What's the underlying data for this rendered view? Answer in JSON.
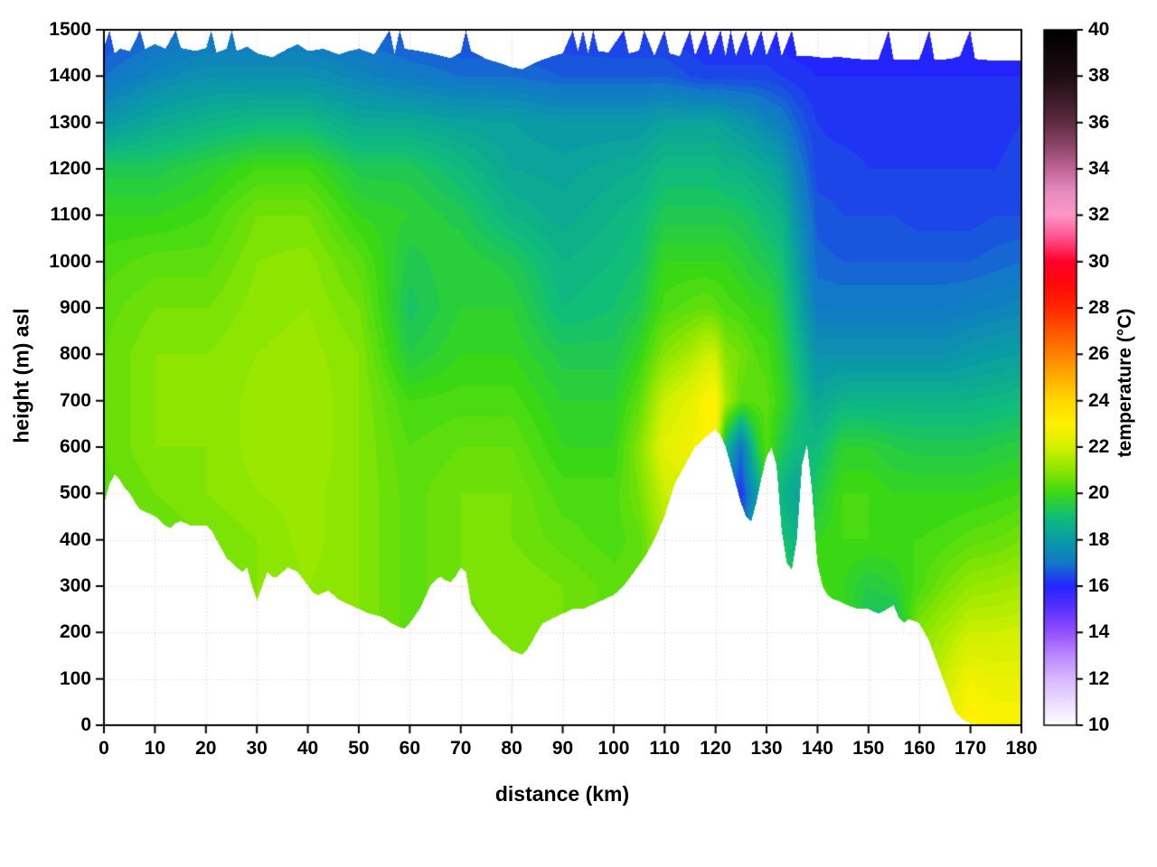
{
  "chart_data": {
    "type": "heatmap",
    "title": "",
    "xlabel": "distance (km)",
    "ylabel": "height (m) asl",
    "x_range": [
      0,
      180
    ],
    "y_range": [
      0,
      1500
    ],
    "grid": true,
    "xticks": [
      0,
      10,
      20,
      30,
      40,
      50,
      60,
      70,
      80,
      90,
      100,
      110,
      120,
      130,
      140,
      150,
      160,
      170,
      180
    ],
    "yticks": [
      0,
      100,
      200,
      300,
      400,
      500,
      600,
      700,
      800,
      900,
      1000,
      1100,
      1200,
      1300,
      1400,
      1500
    ],
    "colorbar": {
      "label": "temperature (°C)",
      "range": [
        10,
        40
      ],
      "ticks": [
        10,
        12,
        14,
        16,
        18,
        20,
        22,
        24,
        26,
        28,
        30,
        32,
        34,
        36,
        38,
        40
      ],
      "palette": [
        [
          10,
          "#ffffff"
        ],
        [
          11,
          "#ebdcff"
        ],
        [
          12,
          "#d8b8ff"
        ],
        [
          13,
          "#bc87ff"
        ],
        [
          14,
          "#9650ff"
        ],
        [
          15,
          "#5a32ff"
        ],
        [
          16,
          "#2424ff"
        ],
        [
          17,
          "#1278c8"
        ],
        [
          18,
          "#0a9ca4"
        ],
        [
          19,
          "#10be78"
        ],
        [
          20,
          "#3ad814"
        ],
        [
          21,
          "#8ce600"
        ],
        [
          22,
          "#d2f000"
        ],
        [
          23,
          "#fff200"
        ],
        [
          24,
          "#ffd700"
        ],
        [
          25,
          "#ffaf00"
        ],
        [
          26,
          "#ff8200"
        ],
        [
          27,
          "#ff5500"
        ],
        [
          28,
          "#ff2800"
        ],
        [
          29,
          "#ff0a0a"
        ],
        [
          30,
          "#ff0028"
        ],
        [
          31,
          "#ff508c"
        ],
        [
          32,
          "#ff96c8"
        ],
        [
          33,
          "#e68cbe"
        ],
        [
          34,
          "#be6496"
        ],
        [
          35,
          "#8c4669"
        ],
        [
          36,
          "#5f2d41"
        ],
        [
          37,
          "#3c1c28"
        ],
        [
          38,
          "#1e0e14"
        ],
        [
          40,
          "#000000"
        ]
      ]
    },
    "heights": [
      0,
      100,
      200,
      300,
      400,
      500,
      600,
      700,
      800,
      900,
      1000,
      1100,
      1200,
      1300,
      1400,
      1500
    ],
    "profiles": [
      {
        "x": 0,
        "t": [
          20.3,
          20.3,
          20.3,
          20.3,
          20.3,
          20.5,
          20.6,
          20.6,
          20.6,
          20.5,
          20.3,
          20.0,
          19.5,
          18.0,
          17.0,
          16.5
        ]
      },
      {
        "x": 10,
        "t": [
          20.5,
          20.5,
          20.5,
          20.5,
          20.6,
          20.8,
          21.0,
          21.0,
          21.0,
          20.8,
          20.5,
          20.0,
          19.5,
          18.5,
          17.5,
          16.8
        ]
      },
      {
        "x": 20,
        "t": [
          20.5,
          20.5,
          20.5,
          20.6,
          20.8,
          21.0,
          21.0,
          21.0,
          21.0,
          20.8,
          20.5,
          20.2,
          19.8,
          18.8,
          17.8,
          17.0
        ]
      },
      {
        "x": 30,
        "t": [
          21.0,
          21.0,
          21.0,
          21.0,
          21.0,
          21.2,
          21.3,
          21.3,
          21.2,
          21.1,
          21.0,
          20.8,
          20.2,
          19.0,
          17.8,
          17.0
        ]
      },
      {
        "x": 40,
        "t": [
          21.0,
          21.0,
          21.0,
          21.2,
          21.3,
          21.3,
          21.4,
          21.4,
          21.3,
          21.2,
          21.1,
          20.8,
          20.2,
          19.0,
          17.8,
          17.0
        ]
      },
      {
        "x": 50,
        "t": [
          20.8,
          20.8,
          21.0,
          21.0,
          21.0,
          21.0,
          21.0,
          21.0,
          21.0,
          20.8,
          20.5,
          20.0,
          19.5,
          18.5,
          17.5,
          16.8
        ]
      },
      {
        "x": 60,
        "t": [
          20.5,
          20.5,
          20.5,
          20.5,
          20.5,
          20.5,
          20.4,
          20.2,
          19.6,
          19.3,
          19.5,
          19.8,
          19.5,
          18.5,
          17.2,
          16.6
        ]
      },
      {
        "x": 70,
        "t": [
          20.6,
          20.6,
          20.6,
          20.8,
          20.8,
          20.8,
          20.6,
          20.3,
          20.0,
          19.8,
          19.8,
          19.5,
          19.0,
          18.3,
          17.0,
          16.5
        ]
      },
      {
        "x": 80,
        "t": [
          21.0,
          21.0,
          21.0,
          21.0,
          20.8,
          20.8,
          20.6,
          20.3,
          20.0,
          19.8,
          19.5,
          18.8,
          18.4,
          18.2,
          17.0,
          16.5
        ]
      },
      {
        "x": 90,
        "t": [
          20.8,
          20.8,
          20.8,
          20.8,
          20.5,
          20.3,
          20.0,
          19.8,
          19.5,
          19.0,
          18.8,
          18.5,
          18.3,
          18.0,
          16.8,
          16.4
        ]
      },
      {
        "x": 100,
        "t": [
          20.5,
          20.5,
          20.5,
          20.5,
          20.3,
          20.3,
          20.0,
          19.8,
          19.5,
          19.2,
          19.0,
          18.8,
          18.5,
          18.0,
          16.8,
          16.3
        ]
      },
      {
        "x": 105,
        "t": [
          20.5,
          20.5,
          20.5,
          20.5,
          20.5,
          20.8,
          21.0,
          20.5,
          20.0,
          19.5,
          19.2,
          19.0,
          18.6,
          18.0,
          16.8,
          16.3
        ]
      },
      {
        "x": 110,
        "t": [
          21.0,
          21.0,
          21.0,
          21.0,
          21.5,
          22.0,
          22.5,
          22.0,
          21.0,
          20.3,
          20.0,
          19.5,
          19.0,
          18.3,
          16.8,
          16.3
        ]
      },
      {
        "x": 115,
        "t": [
          21.5,
          21.5,
          21.5,
          21.5,
          22.0,
          22.3,
          22.8,
          22.5,
          21.5,
          20.5,
          20.0,
          19.5,
          19.0,
          18.3,
          16.6,
          16.2
        ]
      },
      {
        "x": 118,
        "t": [
          22.0,
          22.0,
          22.0,
          22.0,
          22.0,
          22.3,
          23.0,
          23.0,
          22.0,
          20.6,
          20.0,
          19.5,
          19.0,
          18.3,
          16.5,
          16.1
        ]
      },
      {
        "x": 120,
        "t": [
          22.0,
          22.0,
          22.0,
          22.0,
          22.0,
          22.3,
          23.0,
          23.2,
          22.0,
          20.5,
          20.0,
          19.5,
          19.0,
          18.4,
          16.5,
          16.1
        ]
      },
      {
        "x": 122,
        "t": [
          20.0,
          20.0,
          20.0,
          20.0,
          19.5,
          17.2,
          19.0,
          21.5,
          21.0,
          20.3,
          20.0,
          19.5,
          18.8,
          18.2,
          16.5,
          16.1
        ]
      },
      {
        "x": 125,
        "t": [
          17.0,
          17.0,
          17.0,
          17.0,
          16.5,
          16.3,
          17.0,
          20.5,
          20.8,
          20.2,
          19.8,
          19.4,
          18.8,
          18.0,
          16.5,
          16.1
        ]
      },
      {
        "x": 128,
        "t": [
          19.5,
          19.5,
          19.5,
          19.5,
          19.0,
          18.0,
          19.5,
          20.5,
          20.4,
          20.0,
          19.6,
          19.2,
          18.6,
          17.8,
          16.5,
          16.1
        ]
      },
      {
        "x": 130,
        "t": [
          20.0,
          20.0,
          20.0,
          20.0,
          20.0,
          20.0,
          20.4,
          20.5,
          20.3,
          20.0,
          19.5,
          19.0,
          18.5,
          17.5,
          16.5,
          16.1
        ]
      },
      {
        "x": 133,
        "t": [
          19.8,
          19.8,
          19.8,
          19.8,
          19.3,
          18.8,
          19.5,
          20.0,
          19.8,
          19.5,
          19.2,
          18.8,
          18.2,
          17.3,
          16.4,
          16.0
        ]
      },
      {
        "x": 136,
        "t": [
          19.5,
          19.5,
          19.5,
          19.3,
          18.8,
          18.3,
          19.0,
          19.3,
          19.0,
          18.6,
          18.2,
          17.8,
          17.3,
          16.8,
          16.3,
          16.0
        ]
      },
      {
        "x": 140,
        "t": [
          20.5,
          20.5,
          20.5,
          20.3,
          20.0,
          19.5,
          19.0,
          18.4,
          17.8,
          17.2,
          16.9,
          16.7,
          16.5,
          16.4,
          16.2,
          16.0
        ]
      },
      {
        "x": 145,
        "t": [
          20.3,
          20.3,
          20.2,
          20.0,
          20.2,
          20.2,
          19.8,
          18.8,
          17.8,
          17.2,
          16.8,
          16.6,
          16.5,
          16.3,
          16.2,
          16.0
        ]
      },
      {
        "x": 150,
        "t": [
          20.0,
          20.0,
          19.2,
          19.6,
          20.2,
          20.2,
          19.8,
          18.8,
          17.8,
          17.2,
          16.8,
          16.6,
          16.4,
          16.3,
          16.2,
          16.0
        ]
      },
      {
        "x": 155,
        "t": [
          20.3,
          20.3,
          19.0,
          19.8,
          20.2,
          20.0,
          19.6,
          18.8,
          17.8,
          17.2,
          16.8,
          16.6,
          16.4,
          16.3,
          16.2,
          16.0
        ]
      },
      {
        "x": 160,
        "t": [
          21.5,
          21.3,
          21.0,
          20.3,
          20.2,
          20.0,
          19.5,
          18.8,
          17.8,
          17.2,
          16.8,
          16.5,
          16.4,
          16.3,
          16.2,
          16.0
        ]
      },
      {
        "x": 165,
        "t": [
          22.5,
          22.0,
          21.5,
          20.8,
          20.3,
          20.0,
          19.5,
          18.8,
          17.8,
          17.2,
          16.8,
          16.5,
          16.4,
          16.3,
          16.2,
          16.0
        ]
      },
      {
        "x": 170,
        "t": [
          23.2,
          22.8,
          22.0,
          21.2,
          20.5,
          20.0,
          19.5,
          18.8,
          18.0,
          17.3,
          16.8,
          16.5,
          16.4,
          16.3,
          16.2,
          16.0
        ]
      },
      {
        "x": 175,
        "t": [
          23.0,
          22.6,
          22.0,
          21.3,
          20.6,
          20.1,
          19.6,
          18.9,
          18.1,
          17.4,
          16.9,
          16.6,
          16.4,
          16.3,
          16.2,
          16.0
        ]
      },
      {
        "x": 180,
        "t": [
          23.0,
          22.6,
          22.1,
          21.4,
          20.8,
          20.2,
          19.7,
          19.0,
          18.2,
          17.5,
          17.0,
          16.6,
          16.5,
          16.4,
          16.2,
          16.0
        ]
      }
    ],
    "terrain": {
      "x": [
        0,
        1,
        2,
        3,
        4,
        5,
        6,
        7,
        8,
        10,
        12,
        13,
        14,
        15,
        17,
        18,
        20,
        21,
        22,
        23,
        24,
        25,
        26,
        27,
        28,
        29,
        30,
        31,
        32,
        33,
        34,
        35,
        36,
        37,
        38,
        39,
        40,
        41,
        42,
        44,
        45,
        46,
        48,
        50,
        52,
        54,
        55,
        56,
        58,
        59,
        60,
        61,
        62,
        63,
        64,
        65,
        66,
        67,
        68,
        69,
        70,
        71,
        72,
        73,
        74,
        76,
        78,
        80,
        81,
        82,
        83,
        84,
        85,
        86,
        88,
        90,
        92,
        94,
        95,
        96,
        98,
        100,
        101,
        102,
        103,
        104,
        105,
        106,
        107,
        108,
        109,
        110,
        111,
        112,
        113,
        114,
        115,
        116,
        117,
        118,
        119,
        120,
        121,
        122,
        123,
        124,
        125,
        126,
        127,
        128,
        129,
        130,
        131,
        132,
        133,
        134,
        135,
        136,
        137,
        138,
        139,
        140,
        141,
        142,
        143,
        144,
        146,
        148,
        150,
        151,
        152,
        153,
        154,
        155,
        156,
        157,
        158,
        159,
        160,
        161,
        162,
        163,
        164,
        165,
        166,
        167,
        168,
        169,
        170,
        171,
        172,
        174,
        176,
        178,
        180
      ],
      "h": [
        480,
        520,
        540,
        530,
        510,
        500,
        480,
        465,
        460,
        450,
        430,
        425,
        435,
        440,
        430,
        430,
        430,
        420,
        400,
        380,
        360,
        350,
        340,
        330,
        340,
        300,
        268,
        300,
        330,
        318,
        320,
        330,
        340,
        335,
        330,
        315,
        300,
        285,
        280,
        290,
        280,
        270,
        260,
        250,
        240,
        235,
        230,
        222,
        210,
        208,
        220,
        235,
        252,
        275,
        300,
        312,
        320,
        312,
        308,
        320,
        340,
        330,
        262,
        245,
        230,
        200,
        180,
        160,
        156,
        152,
        162,
        180,
        200,
        218,
        230,
        240,
        250,
        250,
        255,
        260,
        270,
        280,
        290,
        300,
        315,
        330,
        345,
        360,
        380,
        400,
        425,
        450,
        485,
        520,
        540,
        560,
        580,
        600,
        610,
        620,
        630,
        638,
        625,
        600,
        560,
        520,
        480,
        450,
        438,
        478,
        530,
        578,
        598,
        560,
        420,
        350,
        335,
        400,
        560,
        605,
        500,
        350,
        300,
        280,
        272,
        268,
        258,
        250,
        250,
        245,
        240,
        245,
        252,
        258,
        232,
        220,
        228,
        224,
        220,
        200,
        180,
        150,
        120,
        90,
        60,
        30,
        18,
        8,
        4,
        2,
        0,
        0,
        0,
        0,
        0
      ]
    },
    "top": {
      "x": [
        0,
        1,
        2,
        3,
        5,
        7,
        8,
        10,
        12,
        14,
        15,
        18,
        20,
        21,
        22,
        24,
        25,
        26,
        28,
        30,
        33,
        36,
        38,
        40,
        43,
        46,
        48,
        50,
        53,
        56,
        57,
        58,
        59,
        62,
        65,
        68,
        70,
        71,
        72,
        75,
        78,
        80,
        82,
        85,
        88,
        90,
        92,
        93,
        94,
        95,
        96,
        97,
        99,
        102,
        103,
        105,
        106,
        108,
        110,
        111,
        113,
        115,
        116,
        118,
        119,
        121,
        122,
        123,
        124,
        126,
        127,
        129,
        130,
        132,
        133,
        135,
        136,
        138,
        140,
        142,
        144,
        146,
        148,
        150,
        152,
        154,
        155,
        158,
        160,
        162,
        163,
        166,
        168,
        170,
        171,
        174,
        177,
        180
      ],
      "h": [
        1465,
        1500,
        1450,
        1460,
        1455,
        1500,
        1460,
        1470,
        1460,
        1500,
        1462,
        1455,
        1462,
        1500,
        1452,
        1460,
        1500,
        1455,
        1465,
        1450,
        1442,
        1460,
        1470,
        1455,
        1460,
        1448,
        1455,
        1460,
        1448,
        1500,
        1450,
        1500,
        1460,
        1455,
        1448,
        1440,
        1452,
        1500,
        1455,
        1438,
        1428,
        1420,
        1416,
        1432,
        1444,
        1450,
        1500,
        1455,
        1500,
        1450,
        1500,
        1455,
        1452,
        1500,
        1450,
        1456,
        1500,
        1445,
        1500,
        1450,
        1444,
        1500,
        1445,
        1500,
        1445,
        1500,
        1444,
        1500,
        1445,
        1500,
        1444,
        1500,
        1445,
        1500,
        1444,
        1500,
        1444,
        1445,
        1442,
        1440,
        1443,
        1440,
        1438,
        1436,
        1436,
        1500,
        1436,
        1436,
        1436,
        1500,
        1436,
        1438,
        1444,
        1500,
        1438,
        1435,
        1435,
        1435
      ]
    }
  }
}
